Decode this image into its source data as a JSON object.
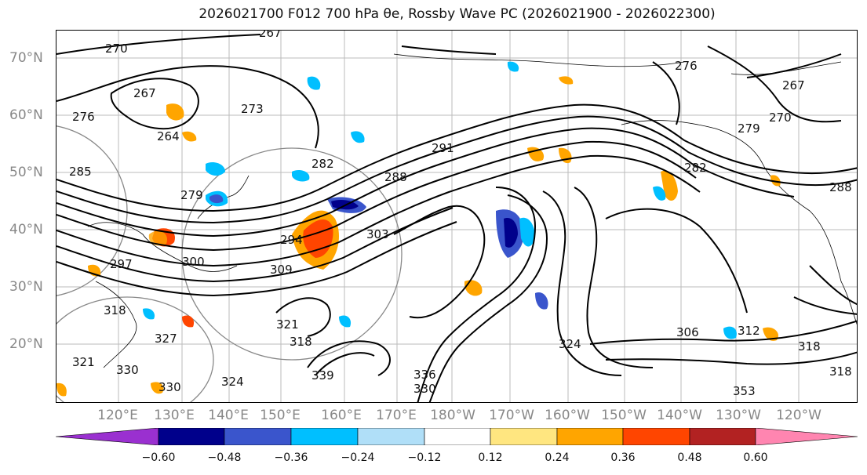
{
  "title": "2026021700 F012 700 hPa θe, Rossby Wave PC (2026021900 - 2026022300)",
  "lat_labels": [
    "70°N",
    "60°N",
    "50°N",
    "40°N",
    "30°N",
    "20°N"
  ],
  "lon_labels": [
    "120°E",
    "130°E",
    "140°E",
    "150°E",
    "160°E",
    "170°E",
    "180°W",
    "170°W",
    "160°W",
    "150°W",
    "140°W",
    "130°W",
    "120°W"
  ],
  "contour_labels": [
    "267",
    "270",
    "267",
    "264",
    "276",
    "273",
    "285",
    "279",
    "282",
    "288",
    "291",
    "294",
    "297",
    "303",
    "309",
    "300",
    "318",
    "321",
    "321",
    "327",
    "318",
    "330",
    "324",
    "330",
    "339",
    "330",
    "336",
    "306",
    "324",
    "312",
    "318",
    "353",
    "276",
    "279",
    "282",
    "270",
    "267",
    "288",
    "318"
  ],
  "colorbar": {
    "ticks": [
      "−0.60",
      "−0.48",
      "−0.36",
      "−0.24",
      "−0.12",
      "0.12",
      "0.24",
      "0.36",
      "0.48",
      "0.60"
    ],
    "colors": [
      "#9a30d0",
      "#00008b",
      "#3a55cc",
      "#00bfff",
      "#b0dff8",
      "#ffffff",
      "#ffe680",
      "#ffa500",
      "#ff4500",
      "#b22222",
      "#ff85b0"
    ]
  }
}
